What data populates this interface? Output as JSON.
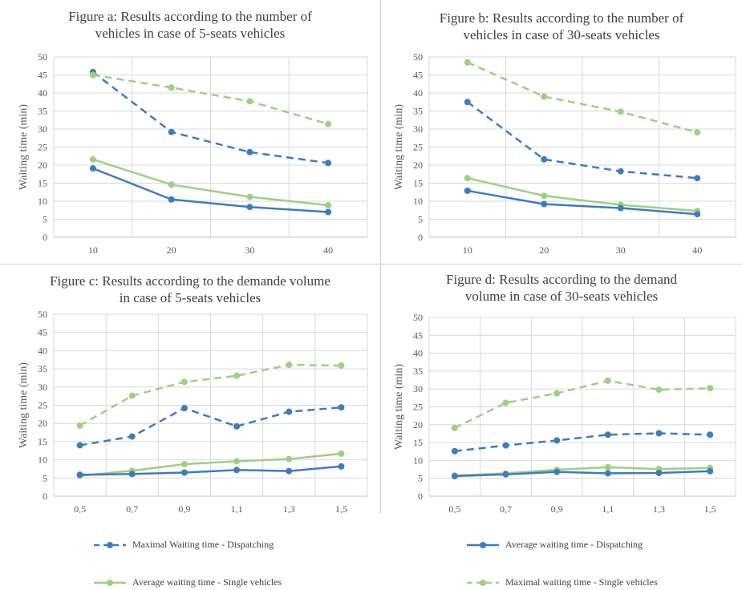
{
  "colors": {
    "blue": "#3e7cc0",
    "green": "#9ecf83",
    "grid": "#d9d9d9",
    "axis": "#bfbfbf"
  },
  "legend": [
    {
      "label": "Maximal Waiting time - Dispatching",
      "color": "#3e7cc0",
      "dashed": true
    },
    {
      "label": "Average waiting time - Dispatching",
      "color": "#3e7cc0",
      "dashed": false
    },
    {
      "label": "Average waiting time - Single vehicles",
      "color": "#9ecf83",
      "dashed": false
    },
    {
      "label": "Maximal waiting time - Single vehicles",
      "color": "#9ecf83",
      "dashed": true
    }
  ],
  "chart_data": [
    {
      "type": "line",
      "title": "Figure a: Results according to the number of\nvehicles in case of 5-seats vehicles",
      "ylabel": "Waiting time (min)",
      "ylim": [
        0,
        50
      ],
      "yticks": [
        0,
        5,
        10,
        15,
        20,
        25,
        30,
        35,
        40,
        45,
        50
      ],
      "categories": [
        "10",
        "20",
        "30",
        "40"
      ],
      "series": [
        {
          "name": "Maximal Waiting time - Dispatching",
          "color": "#3e7cc0",
          "dashed": true,
          "values": [
            45.8,
            29.2,
            23.6,
            20.6
          ]
        },
        {
          "name": "Maximal waiting time - Single vehicles",
          "color": "#9ecf83",
          "dashed": true,
          "values": [
            45.0,
            41.5,
            37.7,
            31.4
          ]
        },
        {
          "name": "Average waiting time - Single vehicles",
          "color": "#9ecf83",
          "dashed": false,
          "values": [
            21.6,
            14.6,
            11.2,
            8.9
          ]
        },
        {
          "name": "Average waiting time - Dispatching",
          "color": "#3e7cc0",
          "dashed": false,
          "values": [
            19.1,
            10.5,
            8.4,
            7.0
          ]
        }
      ]
    },
    {
      "type": "line",
      "title": "Figure b: Results according to the number of\nvehicles in case of 30-seats vehicles",
      "ylabel": "Waiting time (min)",
      "ylim": [
        0,
        50
      ],
      "yticks": [
        0,
        5,
        10,
        15,
        20,
        25,
        30,
        35,
        40,
        45,
        50
      ],
      "categories": [
        "10",
        "20",
        "30",
        "40"
      ],
      "series": [
        {
          "name": "Maximal waiting time - Single vehicles",
          "color": "#9ecf83",
          "dashed": true,
          "values": [
            48.5,
            39.0,
            34.8,
            29.1
          ]
        },
        {
          "name": "Maximal Waiting time - Dispatching",
          "color": "#3e7cc0",
          "dashed": true,
          "values": [
            37.5,
            21.6,
            18.3,
            16.4
          ]
        },
        {
          "name": "Average waiting time - Single vehicles",
          "color": "#9ecf83",
          "dashed": false,
          "values": [
            16.4,
            11.5,
            9.0,
            7.3
          ]
        },
        {
          "name": "Average waiting time - Dispatching",
          "color": "#3e7cc0",
          "dashed": false,
          "values": [
            12.9,
            9.2,
            8.1,
            6.4
          ]
        }
      ]
    },
    {
      "type": "line",
      "title": "Figure c: Results according to the demande volume\nin case of 5-seats vehicles",
      "ylabel": "Waiting time (min)",
      "ylim": [
        0,
        50
      ],
      "yticks": [
        0,
        5,
        10,
        15,
        20,
        25,
        30,
        35,
        40,
        45,
        50
      ],
      "categories": [
        "0,5",
        "0,7",
        "0,9",
        "1,1",
        "1,3",
        "1,5"
      ],
      "series": [
        {
          "name": "Maximal waiting time - Single vehicles",
          "color": "#9ecf83",
          "dashed": true,
          "values": [
            19.4,
            27.6,
            31.4,
            33.1,
            36.1,
            35.9
          ]
        },
        {
          "name": "Maximal Waiting time - Dispatching",
          "color": "#3e7cc0",
          "dashed": true,
          "values": [
            14.0,
            16.4,
            24.2,
            19.2,
            23.2,
            24.4
          ]
        },
        {
          "name": "Average waiting time - Single vehicles",
          "color": "#9ecf83",
          "dashed": false,
          "values": [
            5.6,
            7.0,
            8.8,
            9.6,
            10.2,
            11.7
          ]
        },
        {
          "name": "Average waiting time - Dispatching",
          "color": "#3e7cc0",
          "dashed": false,
          "values": [
            5.9,
            6.1,
            6.5,
            7.2,
            6.9,
            8.2
          ]
        }
      ]
    },
    {
      "type": "line",
      "title": "Figure d: Results according to the demand\nvolume in case of 30-seats vehicles",
      "ylabel": "Waiting time (min)",
      "ylim": [
        0,
        50
      ],
      "yticks": [
        0,
        5,
        10,
        15,
        20,
        25,
        30,
        35,
        40,
        45,
        50
      ],
      "categories": [
        "0,5",
        "0,7",
        "0,9",
        "1,1",
        "1,3",
        "1,5"
      ],
      "series": [
        {
          "name": "Maximal waiting time - Single vehicles",
          "color": "#9ecf83",
          "dashed": true,
          "values": [
            19.1,
            26.1,
            28.8,
            32.3,
            29.8,
            30.2
          ]
        },
        {
          "name": "Maximal Waiting time - Dispatching",
          "color": "#3e7cc0",
          "dashed": true,
          "values": [
            12.6,
            14.2,
            15.6,
            17.2,
            17.6,
            17.2
          ]
        },
        {
          "name": "Average waiting time - Single vehicles",
          "color": "#9ecf83",
          "dashed": false,
          "values": [
            5.8,
            6.4,
            7.4,
            8.1,
            7.6,
            7.9
          ]
        },
        {
          "name": "Average waiting time - Dispatching",
          "color": "#3e7cc0",
          "dashed": false,
          "values": [
            5.6,
            6.1,
            6.8,
            6.4,
            6.5,
            7.0
          ]
        }
      ]
    }
  ]
}
